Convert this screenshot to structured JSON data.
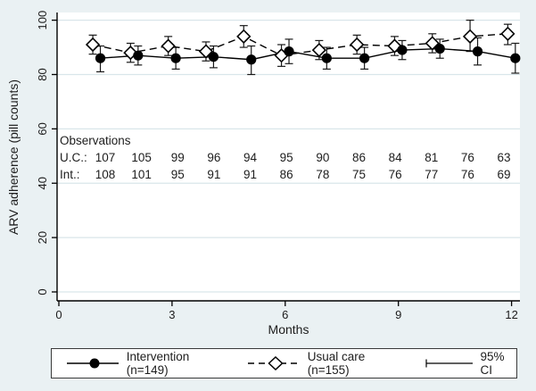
{
  "figure": {
    "background_color": "#eaf1f3",
    "plot_background_color": "#ffffff",
    "grid_color": "#d9e6ea",
    "axis_color": "#000000",
    "text_color": "#1d1d1d"
  },
  "chart_data": {
    "type": "line",
    "title": "",
    "xlabel": "Months",
    "ylabel": "ARV adherence (pill counts)",
    "xlim": [
      0,
      12.25
    ],
    "ylim": [
      0,
      100
    ],
    "xticks": [
      0,
      3,
      6,
      9,
      12
    ],
    "yticks": [
      0,
      20,
      40,
      60,
      80,
      100
    ],
    "grid": true,
    "x": [
      1,
      2,
      3,
      4,
      5,
      6,
      7,
      8,
      9,
      10,
      11,
      12
    ],
    "series": [
      {
        "name": "Usual care (n=155)",
        "marker": "open-diamond",
        "line_style": "dashed",
        "x_offset": -0.1,
        "values": [
          91,
          88,
          90.5,
          88.5,
          94,
          87,
          89,
          91,
          90.5,
          91.5,
          94,
          95
        ],
        "ci_low": [
          87.5,
          84.5,
          87,
          85,
          90,
          83,
          85.5,
          87.5,
          87,
          88,
          88.5,
          91
        ],
        "ci_high": [
          94.5,
          91.5,
          94,
          92,
          98,
          91,
          92.5,
          94.5,
          94,
          95,
          100,
          98.5
        ]
      },
      {
        "name": "Intervention (n=149)",
        "marker": "filled-circle",
        "line_style": "solid",
        "x_offset": 0.1,
        "values": [
          86,
          87,
          86,
          86.5,
          85.5,
          88.5,
          86,
          86,
          89,
          89.5,
          88.5,
          86
        ],
        "ci_low": [
          81,
          83.5,
          82,
          82.5,
          80,
          84,
          82,
          82,
          85.5,
          86,
          83.5,
          80.5
        ],
        "ci_high": [
          90.5,
          90.5,
          90,
          90.5,
          90.5,
          93,
          90,
          90,
          92.5,
          93,
          93.5,
          91.5
        ]
      }
    ],
    "legend": {
      "position": "bottom",
      "entries": [
        "Intervention (n=149)",
        "Usual care (n=155)"
      ],
      "ci_label": "95% CI"
    }
  },
  "observations": {
    "title": "Observations",
    "rows": [
      {
        "label": "U.C.:",
        "values": [
          "107",
          "105",
          "99",
          "96",
          "94",
          "95",
          "90",
          "86",
          "84",
          "81",
          "76",
          "63"
        ]
      },
      {
        "label": "Int.:",
        "values": [
          "108",
          "101",
          "95",
          "91",
          "91",
          "86",
          "78",
          "75",
          "76",
          "77",
          "76",
          "69"
        ]
      }
    ]
  }
}
